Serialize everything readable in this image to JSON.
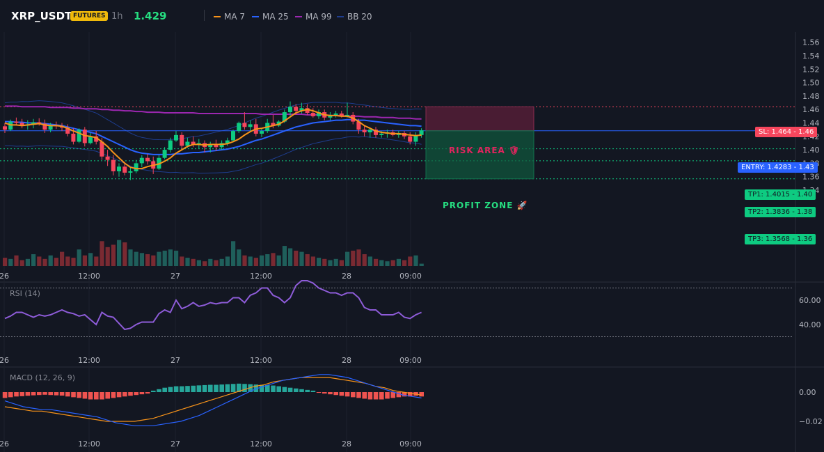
{
  "header": {
    "symbol": "XRP_USDT",
    "badge": "FUTURES",
    "timeframe": "1h",
    "last_price": "1.429",
    "legend": [
      {
        "label": "MA 7",
        "color": "#f7931a"
      },
      {
        "label": "MA 25",
        "color": "#2962ff"
      },
      {
        "label": "MA 99",
        "color": "#9c27b0"
      },
      {
        "label": "BB 20",
        "color": "#1e3d8f"
      }
    ]
  },
  "colors": {
    "up": "#26a69a",
    "up_bright": "#0ecb81",
    "down": "#f6465d",
    "background": "#131722"
  },
  "time_axis": [
    "26",
    "12:00",
    "27",
    "12:00",
    "28",
    "09:00"
  ],
  "price_axis": [
    "1.56",
    "1.54",
    "1.52",
    "1.50",
    "1.48",
    "1.46",
    "1.44",
    "1.42",
    "1.40",
    "1.38",
    "1.36",
    "1.34"
  ],
  "levels": {
    "sl": {
      "label": "SL: 1.464 - 1.46",
      "price": 1.464
    },
    "entry": {
      "label": "ENTRY: 1.4283 - 1.43",
      "price": 1.4283
    },
    "tp1": {
      "label": "TP1: 1.4015 - 1.40",
      "price": 1.4015
    },
    "tp2": {
      "label": "TP2: 1.3836 - 1.38",
      "price": 1.3836
    },
    "tp3": {
      "label": "TP3: 1.3568 - 1.36",
      "price": 1.3568
    }
  },
  "zones": {
    "risk": "RISK AREA 🛡",
    "profit": "PROFIT ZONE 🚀"
  },
  "rsi": {
    "title": "RSI (14)",
    "axis": [
      "60.00",
      "40.00"
    ],
    "upper": 70,
    "lower": 30
  },
  "macd": {
    "title": "MACD (12, 26, 9)",
    "axis": [
      "0.00",
      "−0.02"
    ]
  },
  "chart_data": {
    "type": "candlestick",
    "candles": [
      [
        1.435,
        1.44,
        1.425,
        1.43
      ],
      [
        1.43,
        1.445,
        1.428,
        1.442
      ],
      [
        1.442,
        1.448,
        1.436,
        1.44
      ],
      [
        1.44,
        1.446,
        1.432,
        1.436
      ],
      [
        1.436,
        1.444,
        1.43,
        1.438
      ],
      [
        1.438,
        1.446,
        1.432,
        1.441
      ],
      [
        1.441,
        1.447,
        1.436,
        1.439
      ],
      [
        1.439,
        1.445,
        1.425,
        1.43
      ],
      [
        1.43,
        1.44,
        1.426,
        1.437
      ],
      [
        1.437,
        1.442,
        1.431,
        1.435
      ],
      [
        1.435,
        1.44,
        1.428,
        1.433
      ],
      [
        1.433,
        1.438,
        1.42,
        1.424
      ],
      [
        1.424,
        1.432,
        1.408,
        1.412
      ],
      [
        1.412,
        1.432,
        1.41,
        1.43
      ],
      [
        1.43,
        1.434,
        1.405,
        1.41
      ],
      [
        1.41,
        1.425,
        1.408,
        1.42
      ],
      [
        1.42,
        1.428,
        1.408,
        1.412
      ],
      [
        1.412,
        1.418,
        1.385,
        1.39
      ],
      [
        1.39,
        1.4,
        1.376,
        1.385
      ],
      [
        1.385,
        1.392,
        1.362,
        1.368
      ],
      [
        1.368,
        1.38,
        1.36,
        1.375
      ],
      [
        1.375,
        1.382,
        1.362,
        1.366
      ],
      [
        1.366,
        1.374,
        1.355,
        1.368
      ],
      [
        1.368,
        1.385,
        1.365,
        1.38
      ],
      [
        1.38,
        1.392,
        1.374,
        1.388
      ],
      [
        1.388,
        1.394,
        1.378,
        1.383
      ],
      [
        1.383,
        1.39,
        1.364,
        1.372
      ],
      [
        1.372,
        1.392,
        1.37,
        1.388
      ],
      [
        1.388,
        1.404,
        1.386,
        1.4
      ],
      [
        1.4,
        1.418,
        1.396,
        1.414
      ],
      [
        1.414,
        1.428,
        1.412,
        1.422
      ],
      [
        1.422,
        1.426,
        1.4,
        1.406
      ],
      [
        1.406,
        1.418,
        1.403,
        1.412
      ],
      [
        1.412,
        1.42,
        1.404,
        1.408
      ],
      [
        1.408,
        1.416,
        1.402,
        1.41
      ],
      [
        1.41,
        1.414,
        1.396,
        1.404
      ],
      [
        1.404,
        1.412,
        1.396,
        1.408
      ],
      [
        1.408,
        1.415,
        1.398,
        1.404
      ],
      [
        1.404,
        1.414,
        1.4,
        1.41
      ],
      [
        1.41,
        1.418,
        1.406,
        1.414
      ],
      [
        1.414,
        1.43,
        1.412,
        1.428
      ],
      [
        1.428,
        1.442,
        1.425,
        1.44
      ],
      [
        1.44,
        1.456,
        1.43,
        1.434
      ],
      [
        1.434,
        1.444,
        1.428,
        1.438
      ],
      [
        1.438,
        1.446,
        1.42,
        1.424
      ],
      [
        1.424,
        1.432,
        1.419,
        1.428
      ],
      [
        1.428,
        1.446,
        1.425,
        1.44
      ],
      [
        1.44,
        1.452,
        1.432,
        1.436
      ],
      [
        1.436,
        1.444,
        1.434,
        1.442
      ],
      [
        1.442,
        1.46,
        1.44,
        1.456
      ],
      [
        1.456,
        1.472,
        1.448,
        1.464
      ],
      [
        1.464,
        1.468,
        1.452,
        1.458
      ],
      [
        1.458,
        1.47,
        1.454,
        1.462
      ],
      [
        1.462,
        1.468,
        1.452,
        1.455
      ],
      [
        1.455,
        1.462,
        1.448,
        1.45
      ],
      [
        1.45,
        1.46,
        1.446,
        1.456
      ],
      [
        1.456,
        1.46,
        1.444,
        1.448
      ],
      [
        1.448,
        1.456,
        1.444,
        1.452
      ],
      [
        1.452,
        1.458,
        1.448,
        1.454
      ],
      [
        1.454,
        1.458,
        1.448,
        1.45
      ],
      [
        1.45,
        1.47,
        1.448,
        1.452
      ],
      [
        1.452,
        1.456,
        1.438,
        1.442
      ],
      [
        1.442,
        1.446,
        1.424,
        1.43
      ],
      [
        1.43,
        1.436,
        1.42,
        1.426
      ],
      [
        1.426,
        1.432,
        1.418,
        1.43
      ],
      [
        1.43,
        1.434,
        1.418,
        1.422
      ],
      [
        1.422,
        1.428,
        1.418,
        1.424
      ],
      [
        1.424,
        1.43,
        1.418,
        1.426
      ],
      [
        1.426,
        1.43,
        1.42,
        1.422
      ],
      [
        1.422,
        1.428,
        1.418,
        1.425
      ],
      [
        1.425,
        1.428,
        1.416,
        1.42
      ],
      [
        1.42,
        1.426,
        1.408,
        1.412
      ],
      [
        1.412,
        1.426,
        1.406,
        1.422
      ],
      [
        1.422,
        1.432,
        1.418,
        1.429
      ]
    ],
    "volume": [
      0.7,
      0.6,
      0.9,
      0.5,
      0.6,
      1.0,
      0.8,
      0.6,
      0.9,
      0.7,
      1.2,
      0.8,
      0.7,
      1.4,
      0.9,
      1.1,
      0.8,
      2.1,
      1.6,
      1.8,
      2.2,
      2.0,
      1.4,
      1.2,
      1.1,
      1.0,
      0.9,
      1.2,
      1.3,
      1.4,
      1.3,
      0.8,
      0.7,
      0.6,
      0.5,
      0.4,
      0.6,
      0.5,
      0.6,
      0.8,
      2.1,
      1.4,
      0.9,
      0.8,
      0.7,
      0.9,
      1.0,
      1.1,
      0.9,
      1.7,
      1.5,
      1.3,
      1.2,
      1.0,
      0.8,
      0.7,
      0.6,
      0.5,
      0.6,
      0.5,
      1.2,
      1.3,
      1.4,
      1.0,
      0.8,
      0.6,
      0.5,
      0.4,
      0.5,
      0.6,
      0.5,
      0.8,
      0.9,
      0.2
    ],
    "ma7": [
      1.44,
      1.437,
      1.437,
      1.436,
      1.437,
      1.438,
      1.439,
      1.437,
      1.436,
      1.436,
      1.435,
      1.432,
      1.428,
      1.425,
      1.421,
      1.42,
      1.418,
      1.412,
      1.405,
      1.396,
      1.388,
      1.38,
      1.374,
      1.372,
      1.372,
      1.375,
      1.377,
      1.379,
      1.383,
      1.388,
      1.395,
      1.4,
      1.405,
      1.408,
      1.408,
      1.407,
      1.408,
      1.408,
      1.408,
      1.409,
      1.412,
      1.416,
      1.422,
      1.427,
      1.431,
      1.432,
      1.434,
      1.436,
      1.438,
      1.443,
      1.449,
      1.455,
      1.458,
      1.46,
      1.458,
      1.455,
      1.452,
      1.451,
      1.451,
      1.45,
      1.45,
      1.447,
      1.442,
      1.436,
      1.432,
      1.428,
      1.426,
      1.425,
      1.424,
      1.424,
      1.423,
      1.422,
      1.421,
      1.422
    ],
    "ma25": [
      1.442,
      1.442,
      1.441,
      1.441,
      1.44,
      1.44,
      1.44,
      1.439,
      1.438,
      1.437,
      1.436,
      1.434,
      1.432,
      1.43,
      1.428,
      1.426,
      1.424,
      1.42,
      1.416,
      1.412,
      1.408,
      1.404,
      1.4,
      1.397,
      1.395,
      1.394,
      1.393,
      1.393,
      1.393,
      1.393,
      1.394,
      1.394,
      1.395,
      1.396,
      1.396,
      1.397,
      1.398,
      1.399,
      1.4,
      1.401,
      1.403,
      1.405,
      1.408,
      1.411,
      1.414,
      1.416,
      1.419,
      1.422,
      1.425,
      1.428,
      1.431,
      1.434,
      1.436,
      1.438,
      1.44,
      1.441,
      1.442,
      1.443,
      1.444,
      1.444,
      1.445,
      1.445,
      1.444,
      1.444,
      1.443,
      1.442,
      1.441,
      1.44,
      1.439,
      1.438,
      1.437,
      1.436,
      1.436,
      1.435
    ],
    "ma99": [
      1.465,
      1.465,
      1.465,
      1.464,
      1.464,
      1.464,
      1.464,
      1.464,
      1.463,
      1.463,
      1.463,
      1.463,
      1.462,
      1.462,
      1.461,
      1.461,
      1.461,
      1.46,
      1.46,
      1.459,
      1.459,
      1.458,
      1.458,
      1.457,
      1.457,
      1.456,
      1.456,
      1.456,
      1.455,
      1.455,
      1.455,
      1.455,
      1.455,
      1.455,
      1.454,
      1.454,
      1.454,
      1.454,
      1.454,
      1.454,
      1.454,
      1.454,
      1.454,
      1.454,
      1.454,
      1.453,
      1.453,
      1.453,
      1.453,
      1.453,
      1.453,
      1.453,
      1.453,
      1.452,
      1.452,
      1.452,
      1.452,
      1.451,
      1.451,
      1.451,
      1.45,
      1.45,
      1.45,
      1.449,
      1.449,
      1.449,
      1.448,
      1.448,
      1.448,
      1.447,
      1.447,
      1.447,
      1.446,
      1.446
    ],
    "rsi": [
      45,
      47,
      50,
      50,
      48,
      46,
      48,
      47,
      48,
      50,
      52,
      50,
      49,
      47,
      48,
      44,
      40,
      50,
      47,
      46,
      41,
      36,
      37,
      40,
      42,
      42,
      42,
      49,
      52,
      50,
      60,
      53,
      55,
      58,
      55,
      56,
      58,
      57,
      58,
      58,
      62,
      62,
      58,
      64,
      66,
      70,
      70,
      64,
      62,
      58,
      62,
      72,
      76,
      76,
      74,
      70,
      68,
      66,
      66,
      64,
      66,
      66,
      62,
      54,
      52,
      52,
      48,
      48,
      48,
      50,
      46,
      45,
      48,
      50
    ],
    "macd_hist": [
      -0.004,
      -0.0035,
      -0.003,
      -0.0028,
      -0.0025,
      -0.0022,
      -0.002,
      -0.0018,
      -0.002,
      -0.0022,
      -0.0024,
      -0.003,
      -0.0035,
      -0.004,
      -0.0045,
      -0.005,
      -0.005,
      -0.005,
      -0.0045,
      -0.004,
      -0.0035,
      -0.003,
      -0.0025,
      -0.002,
      -0.0015,
      -0.001,
      0.001,
      0.002,
      0.003,
      0.0035,
      0.004,
      0.004,
      0.0042,
      0.0044,
      0.0046,
      0.0048,
      0.005,
      0.005,
      0.0052,
      0.0054,
      0.0056,
      0.0058,
      0.0056,
      0.0054,
      0.0052,
      0.005,
      0.0048,
      0.0045,
      0.004,
      0.0035,
      0.003,
      0.0025,
      0.002,
      0.0015,
      0.001,
      -0.0005,
      -0.001,
      -0.0015,
      -0.002,
      -0.0025,
      -0.003,
      -0.0035,
      -0.004,
      -0.0045,
      -0.005,
      -0.005,
      -0.005,
      -0.0045,
      -0.004,
      -0.0035,
      -0.003,
      -0.003,
      -0.0025,
      -0.003
    ],
    "macd_line": [
      -0.006,
      -0.008,
      -0.01,
      -0.011,
      -0.012,
      -0.012,
      -0.013,
      -0.014,
      -0.015,
      -0.016,
      -0.017,
      -0.019,
      -0.021,
      -0.022,
      -0.023,
      -0.023,
      -0.023,
      -0.022,
      -0.021,
      -0.02,
      -0.018,
      -0.016,
      -0.013,
      -0.01,
      -0.007,
      -0.004,
      -0.001,
      0.002,
      0.004,
      0.006,
      0.008,
      0.009,
      0.01,
      0.011,
      0.012,
      0.012,
      0.011,
      0.01,
      0.008,
      0.006,
      0.004,
      0.002,
      0.0,
      -0.002,
      -0.003,
      -0.004
    ],
    "macd_signal": [
      -0.01,
      -0.011,
      -0.012,
      -0.013,
      -0.013,
      -0.014,
      -0.015,
      -0.016,
      -0.017,
      -0.018,
      -0.019,
      -0.02,
      -0.02,
      -0.02,
      -0.02,
      -0.019,
      -0.018,
      -0.016,
      -0.014,
      -0.012,
      -0.01,
      -0.008,
      -0.006,
      -0.004,
      -0.002,
      0.0,
      0.002,
      0.004,
      0.005,
      0.007,
      0.008,
      0.009,
      0.01,
      0.01,
      0.01,
      0.01,
      0.009,
      0.008,
      0.007,
      0.006,
      0.004,
      0.003,
      0.001,
      0.0,
      -0.001,
      -0.002
    ]
  }
}
